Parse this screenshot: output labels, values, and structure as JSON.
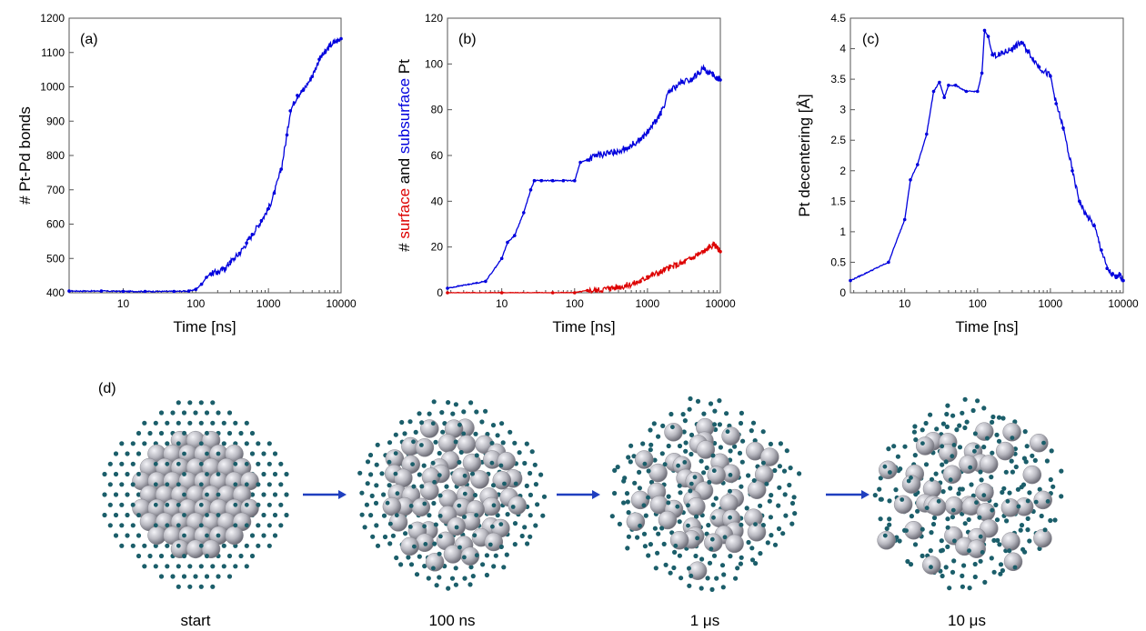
{
  "chart_data": [
    {
      "type": "line",
      "panel_label": "(a)",
      "xlabel": "Time  [ns]",
      "ylabel": "# Pt-Pd bonds",
      "xscale": "log",
      "xlim": [
        1.8,
        10000
      ],
      "ylim": [
        400,
        1200
      ],
      "xticks": [
        10,
        100,
        1000,
        10000
      ],
      "xtick_labels": [
        "10",
        "100",
        "1000",
        "10000"
      ],
      "yticks": [
        400,
        500,
        600,
        700,
        800,
        900,
        1000,
        1100,
        1200
      ],
      "ytick_labels": [
        "400",
        "500",
        "600",
        "700",
        "800",
        "900",
        "1000",
        "1100",
        "1200"
      ],
      "grid": false,
      "series": [
        {
          "color": "#0000dd",
          "x": [
            1.8,
            5,
            10,
            20,
            50,
            80,
            100,
            120,
            140,
            160,
            200,
            250,
            300,
            400,
            500,
            600,
            800,
            1000,
            1200,
            1500,
            1800,
            2000,
            2500,
            3000,
            4000,
            5000,
            6000,
            7000,
            8000,
            9000,
            10000
          ],
          "y": [
            405,
            405,
            404,
            404,
            404,
            405,
            410,
            425,
            445,
            455,
            460,
            470,
            490,
            515,
            545,
            570,
            610,
            645,
            690,
            760,
            860,
            930,
            975,
            990,
            1030,
            1080,
            1100,
            1120,
            1130,
            1135,
            1140
          ]
        }
      ]
    },
    {
      "type": "line",
      "panel_label": "(b)",
      "xlabel": "Time  [ns]",
      "ylabel_parts": [
        {
          "text": "# ",
          "color": "#000000"
        },
        {
          "text": "surface",
          "color": "#dd0000"
        },
        {
          "text": " and ",
          "color": "#000000"
        },
        {
          "text": "subsurface",
          "color": "#0000dd"
        },
        {
          "text": " Pt",
          "color": "#000000"
        }
      ],
      "xscale": "log",
      "xlim": [
        1.8,
        10000
      ],
      "ylim": [
        0,
        120
      ],
      "xticks": [
        10,
        100,
        1000,
        10000
      ],
      "xtick_labels": [
        "10",
        "100",
        "1000",
        "10000"
      ],
      "yticks": [
        0,
        20,
        40,
        60,
        80,
        100,
        120
      ],
      "ytick_labels": [
        "0",
        "20",
        "40",
        "60",
        "80",
        "100",
        "120"
      ],
      "grid": false,
      "series": [
        {
          "color": "#dd0000",
          "x": [
            1.8,
            10,
            50,
            100,
            150,
            200,
            300,
            500,
            800,
            1000,
            1500,
            2000,
            3000,
            4000,
            5000,
            6000,
            7000,
            8000,
            9000,
            10000
          ],
          "y": [
            0,
            0,
            0,
            0,
            1,
            1,
            2,
            3,
            5,
            7,
            9,
            11,
            13,
            15,
            17,
            18,
            20,
            21,
            20,
            18
          ]
        },
        {
          "color": "#0000dd",
          "x": [
            1.8,
            6,
            10,
            12,
            15,
            20,
            25,
            28,
            35,
            50,
            70,
            100,
            120,
            150,
            200,
            300,
            500,
            800,
            1000,
            1500,
            2000,
            3000,
            4000,
            5000,
            6000,
            7000,
            8000,
            9000,
            10000
          ],
          "y": [
            2,
            5,
            15,
            22,
            25,
            35,
            45,
            49,
            49,
            49,
            49,
            49,
            57,
            58,
            60,
            61,
            63,
            67,
            70,
            78,
            88,
            92,
            93,
            96,
            98,
            96,
            95,
            94,
            93
          ]
        }
      ]
    },
    {
      "type": "line",
      "panel_label": "(c)",
      "xlabel": "Time  [ns]",
      "ylabel": "Pt decentering [Å]",
      "xscale": "log",
      "xlim": [
        1.8,
        10000
      ],
      "ylim": [
        0,
        4.5
      ],
      "xticks": [
        10,
        100,
        1000,
        10000
      ],
      "xtick_labels": [
        "10",
        "100",
        "1000",
        "10000"
      ],
      "yticks": [
        0,
        0.5,
        1,
        1.5,
        2,
        2.5,
        3,
        3.5,
        4,
        4.5
      ],
      "ytick_labels": [
        "0",
        "0.5",
        "1",
        "1.5",
        "2",
        "2.5",
        "3",
        "3.5",
        "4",
        "4.5"
      ],
      "grid": false,
      "series": [
        {
          "color": "#0000dd",
          "x": [
            1.8,
            6,
            10,
            12,
            15,
            20,
            25,
            30,
            35,
            40,
            50,
            70,
            100,
            115,
            125,
            140,
            160,
            200,
            300,
            400,
            500,
            700,
            1000,
            1200,
            1500,
            2000,
            2500,
            3000,
            4000,
            5000,
            6000,
            7000,
            8000,
            9000,
            10000
          ],
          "y": [
            0.2,
            0.5,
            1.2,
            1.85,
            2.1,
            2.6,
            3.3,
            3.45,
            3.2,
            3.4,
            3.4,
            3.3,
            3.3,
            3.6,
            4.3,
            4.2,
            3.9,
            3.9,
            4.0,
            4.1,
            3.95,
            3.7,
            3.55,
            3.1,
            2.7,
            2.0,
            1.5,
            1.3,
            1.1,
            0.7,
            0.4,
            0.3,
            0.25,
            0.3,
            0.2
          ]
        }
      ]
    }
  ],
  "panel_d": {
    "label": "(d)",
    "snapshots": [
      {
        "caption": "start",
        "order": 0.0
      },
      {
        "caption": "100 ns",
        "order": 0.35
      },
      {
        "caption": "1 μs",
        "order": 0.65
      },
      {
        "caption": "10 μs",
        "order": 0.9
      }
    ],
    "colors": {
      "large_atom": "#b8b8c0",
      "small_atom": "#1b5e6a",
      "arrow": "#1f3fbf"
    }
  }
}
